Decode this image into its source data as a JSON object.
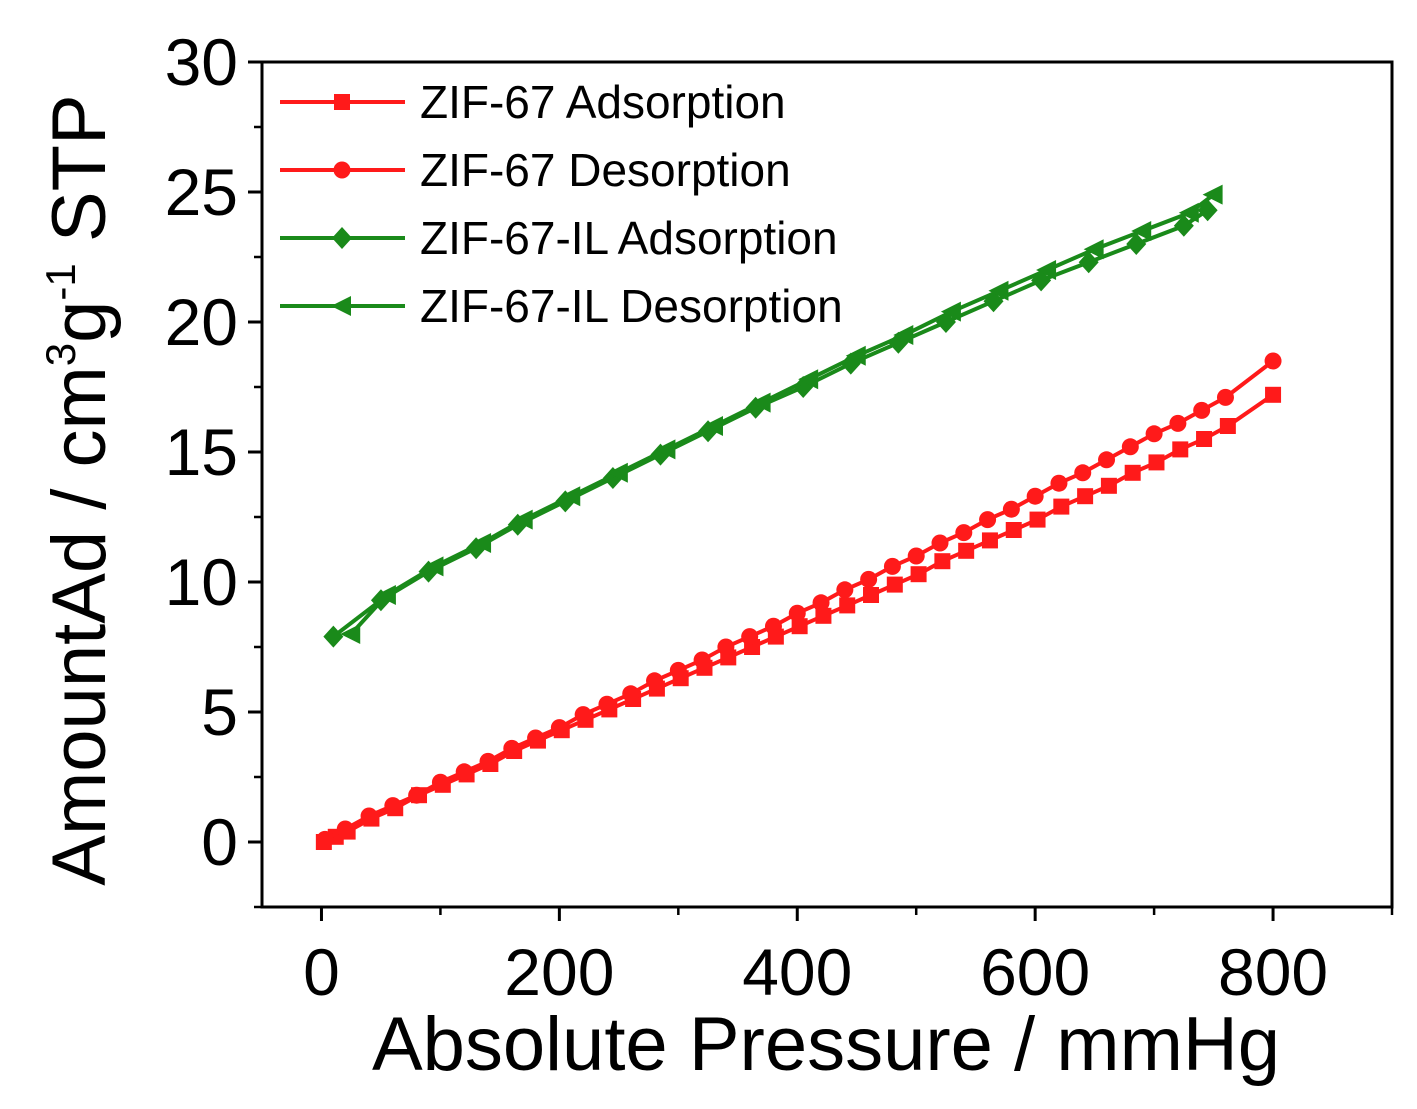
{
  "chart_data": {
    "type": "line",
    "title": "",
    "xlabel": "Absolute Pressure / mmHg",
    "ylabel": {
      "main": "AmountAd / cm",
      "sup1": "3",
      "mid": "g",
      "sup2": "-1",
      "end": " STP"
    },
    "xlim": [
      -50,
      900
    ],
    "ylim": [
      -2.5,
      30
    ],
    "x_ticks": [
      0,
      200,
      400,
      600,
      800
    ],
    "y_ticks": [
      0,
      5,
      10,
      15,
      20,
      25,
      30
    ],
    "x_tick_labels": [
      "0",
      "200",
      "400",
      "600",
      "800"
    ],
    "y_tick_labels": [
      "0",
      "5",
      "10",
      "15",
      "20",
      "25",
      "30"
    ],
    "legend_position": "top-left",
    "colors": {
      "red": "#ff1a1a",
      "green": "#1a8a1a",
      "axis": "#000000"
    },
    "series": [
      {
        "name": "ZIF-67 Adsorption",
        "color": "#ff1a1a",
        "marker": "square",
        "x": [
          2,
          12,
          22,
          42,
          62,
          82,
          102,
          122,
          142,
          162,
          182,
          202,
          222,
          242,
          262,
          282,
          302,
          322,
          342,
          362,
          382,
          402,
          422,
          442,
          462,
          482,
          502,
          522,
          542,
          562,
          582,
          602,
          622,
          642,
          662,
          682,
          702,
          722,
          742,
          762,
          800
        ],
        "y": [
          0.0,
          0.2,
          0.4,
          0.9,
          1.3,
          1.8,
          2.2,
          2.6,
          3.0,
          3.5,
          3.9,
          4.3,
          4.7,
          5.1,
          5.5,
          5.9,
          6.3,
          6.7,
          7.1,
          7.5,
          7.9,
          8.3,
          8.7,
          9.1,
          9.5,
          9.9,
          10.3,
          10.8,
          11.2,
          11.6,
          12.0,
          12.4,
          12.9,
          13.3,
          13.7,
          14.2,
          14.6,
          15.1,
          15.5,
          16.0,
          17.2
        ]
      },
      {
        "name": "ZIF-67 Desorption",
        "color": "#ff1a1a",
        "marker": "circle",
        "x": [
          3,
          20,
          40,
          60,
          80,
          100,
          120,
          140,
          160,
          180,
          200,
          220,
          240,
          260,
          280,
          300,
          320,
          340,
          360,
          380,
          400,
          420,
          440,
          460,
          480,
          500,
          520,
          540,
          560,
          580,
          600,
          620,
          640,
          660,
          680,
          700,
          720,
          740,
          760,
          800
        ],
        "y": [
          0.1,
          0.5,
          1.0,
          1.4,
          1.8,
          2.3,
          2.7,
          3.1,
          3.6,
          4.0,
          4.4,
          4.9,
          5.3,
          5.7,
          6.2,
          6.6,
          7.0,
          7.5,
          7.9,
          8.3,
          8.8,
          9.2,
          9.7,
          10.1,
          10.6,
          11.0,
          11.5,
          11.9,
          12.4,
          12.8,
          13.3,
          13.8,
          14.2,
          14.7,
          15.2,
          15.7,
          16.1,
          16.6,
          17.1,
          18.5
        ]
      },
      {
        "name": "ZIF-67-IL Adsorption",
        "color": "#1a8a1a",
        "marker": "diamond",
        "x": [
          10,
          50,
          90,
          130,
          165,
          205,
          245,
          285,
          325,
          365,
          405,
          445,
          485,
          525,
          565,
          605,
          645,
          685,
          725,
          745
        ],
        "y": [
          7.9,
          9.3,
          10.4,
          11.3,
          12.2,
          13.1,
          14.0,
          14.9,
          15.8,
          16.7,
          17.5,
          18.4,
          19.2,
          20.0,
          20.8,
          21.6,
          22.3,
          23.0,
          23.7,
          24.3
        ]
      },
      {
        "name": "ZIF-67-IL Desorption",
        "color": "#1a8a1a",
        "marker": "triangle-left",
        "x": [
          25,
          55,
          95,
          135,
          170,
          210,
          250,
          290,
          330,
          370,
          410,
          450,
          490,
          530,
          570,
          610,
          650,
          690,
          730,
          750
        ],
        "y": [
          8.0,
          9.5,
          10.6,
          11.5,
          12.4,
          13.3,
          14.2,
          15.1,
          16.0,
          16.9,
          17.8,
          18.7,
          19.5,
          20.4,
          21.2,
          22.0,
          22.8,
          23.5,
          24.2,
          24.9
        ]
      }
    ]
  }
}
